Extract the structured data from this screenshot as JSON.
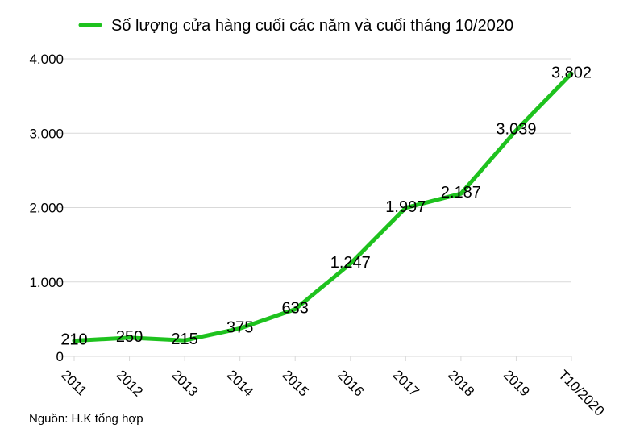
{
  "chart_data": {
    "type": "line",
    "title": "",
    "xlabel": "",
    "ylabel": "",
    "categories": [
      "2011",
      "2012",
      "2013",
      "2014",
      "2015",
      "2016",
      "2017",
      "2018",
      "2019",
      "T10/2020"
    ],
    "series": [
      {
        "name": "Số lượng cửa hàng cuối các năm và cuối tháng 10/2020",
        "values": [
          210,
          250,
          215,
          375,
          633,
          1247,
          1997,
          2187,
          3039,
          3802
        ],
        "labels": [
          "210",
          "250",
          "215",
          "375",
          "633",
          "1.247",
          "1.997",
          "2.187",
          "3.039",
          "3.802"
        ],
        "color": "#1ec21e"
      }
    ],
    "y_ticks": [
      {
        "value": 0,
        "label": "0"
      },
      {
        "value": 1000,
        "label": "1.000"
      },
      {
        "value": 2000,
        "label": "2.000"
      },
      {
        "value": 3000,
        "label": "3.000"
      },
      {
        "value": 4000,
        "label": "4.000"
      }
    ],
    "ylim": [
      0,
      4000
    ],
    "grid": true,
    "legend_position": "top"
  },
  "source_note": "Nguồn: H.K tổng hợp"
}
